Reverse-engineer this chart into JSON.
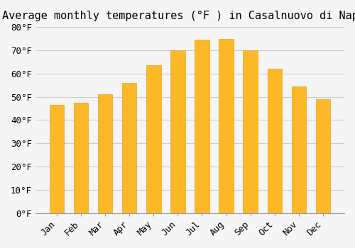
{
  "title": "Average monthly temperatures (°F ) in Casalnuovo di Napoli",
  "months": [
    "Jan",
    "Feb",
    "Mar",
    "Apr",
    "May",
    "Jun",
    "Jul",
    "Aug",
    "Sep",
    "Oct",
    "Nov",
    "Dec"
  ],
  "values": [
    46.5,
    47.5,
    51.0,
    56.0,
    63.5,
    70.0,
    74.5,
    75.0,
    70.0,
    62.0,
    54.5,
    49.0
  ],
  "bar_color": "#FDB827",
  "bar_edge_color": "#E8A020",
  "background_color": "#F5F5F5",
  "grid_color": "#CCCCCC",
  "ylim": [
    0,
    80
  ],
  "ytick_step": 10,
  "title_fontsize": 11,
  "tick_fontsize": 9,
  "font_family": "monospace"
}
